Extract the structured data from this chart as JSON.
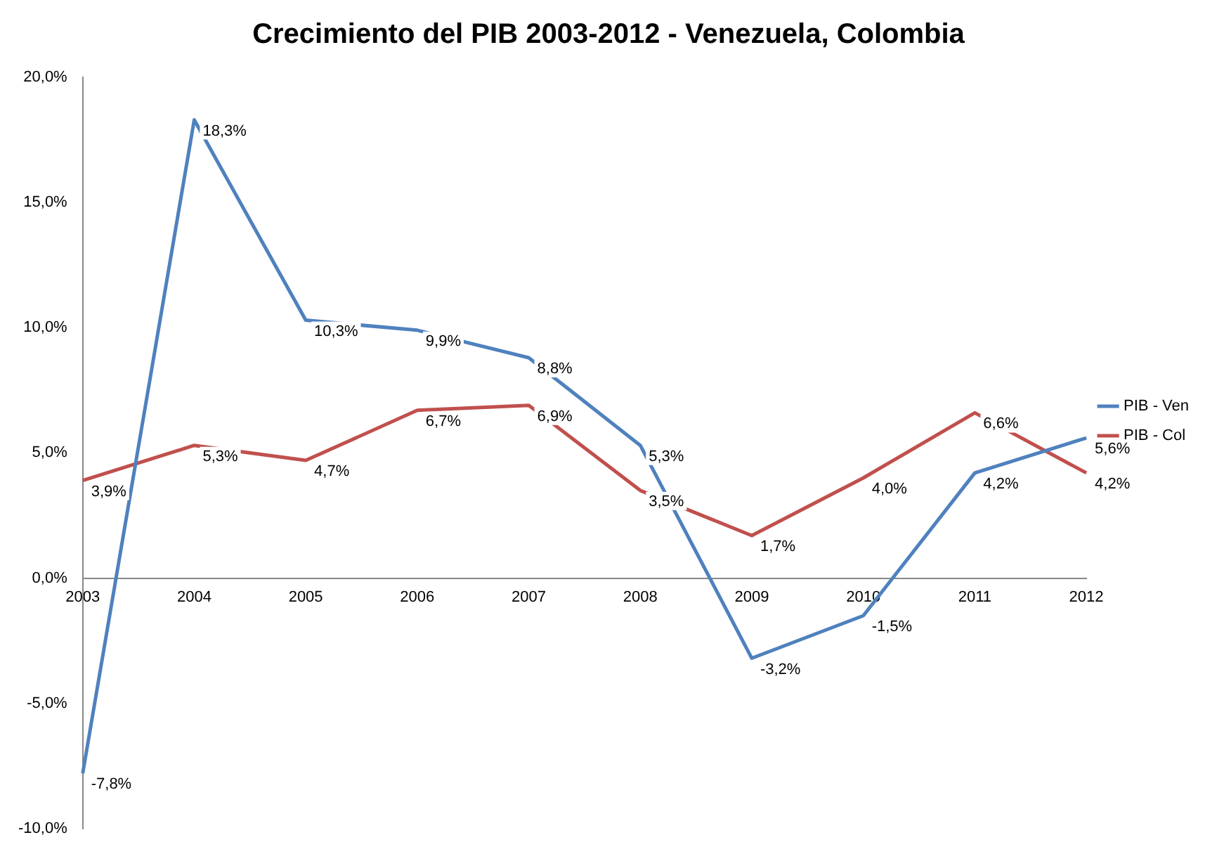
{
  "chart_data": {
    "type": "line",
    "title": "Crecimiento del PIB 2003-2012 - Venezuela, Colombia",
    "categories": [
      "2003",
      "2004",
      "2005",
      "2006",
      "2007",
      "2008",
      "2009",
      "2010",
      "2011",
      "2012"
    ],
    "series": [
      {
        "name": "PIB - Ven",
        "color": "#4f81bd",
        "values": [
          -7.8,
          18.3,
          10.3,
          9.9,
          8.8,
          5.3,
          -3.2,
          -1.5,
          4.2,
          5.6
        ],
        "value_labels": [
          "-7,8%",
          "18,3%",
          "10,3%",
          "9,9%",
          "8,8%",
          "5,3%",
          "-3,2%",
          "-1,5%",
          "4,2%",
          "5,6%"
        ]
      },
      {
        "name": "PIB - Col",
        "color": "#c0504d",
        "values": [
          3.9,
          5.3,
          4.7,
          6.7,
          6.9,
          3.5,
          1.7,
          4.0,
          6.6,
          4.2
        ],
        "value_labels": [
          "3,9%",
          "5,3%",
          "4,7%",
          "6,7%",
          "6,9%",
          "3,5%",
          "1,7%",
          "4,0%",
          "6,6%",
          "4,2%"
        ]
      }
    ],
    "ylim": [
      -10,
      20
    ],
    "yticks": [
      {
        "value": -10,
        "label": "-10,0%"
      },
      {
        "value": -5,
        "label": "-5,0%"
      },
      {
        "value": 0,
        "label": "0,0%"
      },
      {
        "value": 5,
        "label": "5,0%"
      },
      {
        "value": 10,
        "label": "10,0%"
      },
      {
        "value": 15,
        "label": "15,0%"
      },
      {
        "value": 20,
        "label": "20,0%"
      }
    ],
    "grid": false,
    "legend": "right",
    "marker": "none",
    "line_style": "solid"
  }
}
